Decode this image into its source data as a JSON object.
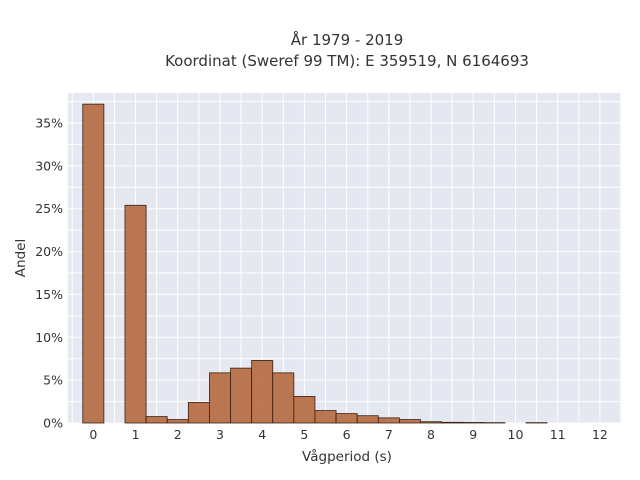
{
  "chart_data": {
    "type": "bar",
    "title_lines": [
      "År 1979 - 2019",
      "Koordinat (Sweref 99 TM): E 359519, N 6164693"
    ],
    "xlabel": "Vågperiod (s)",
    "ylabel": "Andel",
    "x_ticks": [
      0,
      1,
      2,
      3,
      4,
      5,
      6,
      7,
      8,
      9,
      10,
      11,
      12
    ],
    "y_ticks": [
      0,
      5,
      10,
      15,
      20,
      25,
      30,
      35
    ],
    "y_tick_suffix": "%",
    "xlim": [
      -0.6,
      12.5
    ],
    "ylim": [
      0,
      38.5
    ],
    "bin_width": 0.5,
    "bin_starts": [
      -0.25,
      0.25,
      0.75,
      1.25,
      1.75,
      2.25,
      2.75,
      3.25,
      3.75,
      4.25,
      4.75,
      5.25,
      5.75,
      6.25,
      6.75,
      7.25,
      7.75,
      8.25,
      8.75,
      9.25,
      9.75,
      10.25,
      10.75,
      11.25,
      11.75
    ],
    "values": [
      37.2,
      0,
      25.4,
      0.75,
      0.4,
      2.4,
      5.85,
      6.4,
      7.3,
      5.85,
      3.1,
      1.45,
      1.1,
      0.85,
      0.6,
      0.4,
      0.15,
      0.08,
      0.06,
      0.04,
      0,
      0.04,
      0,
      0,
      0
    ],
    "colors": {
      "bar": "#b5693e",
      "edge": "#3a2010",
      "plot_bg": "#e5e8f0",
      "grid": "#ffffff"
    },
    "grid": true
  }
}
